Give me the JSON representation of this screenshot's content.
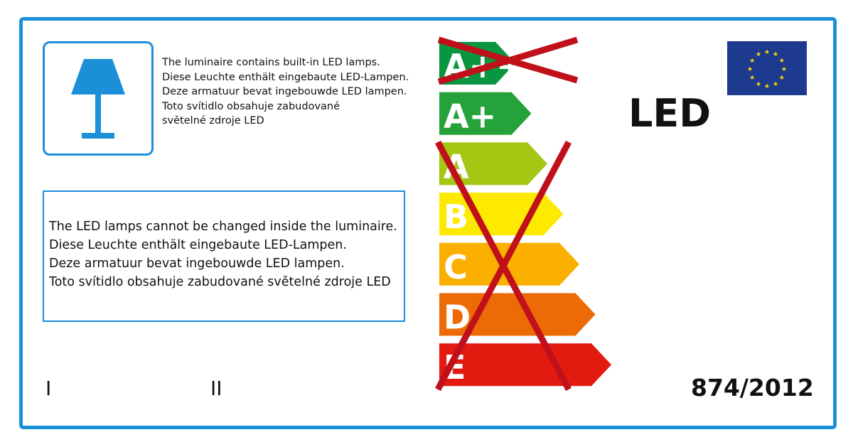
{
  "info_text": [
    "The luminaire contains built-in LED lamps.",
    "Diese Leuchte enthält eingebaute LED-Lampen.",
    "Deze armatuur bevat ingebouwde LED lampen.",
    "Toto svítidlo obsahuje zabudované",
    "světelné zdroje LED"
  ],
  "notice_text": [
    "The LED lamps cannot be changed inside the luminaire.",
    "Diese Leuchte enthält eingebaute LED-Lampen.",
    "Deze armatuur bevat ingebouwde LED lampen.",
    "Toto svítidlo obsahuje zabudované světelné zdroje LED"
  ],
  "led_label": "LED",
  "regulation": "874/2012",
  "roman": [
    "I",
    "II"
  ],
  "icons": {
    "lamp": "table-lamp-icon",
    "flag": "eu-flag-icon"
  },
  "energy_classes": [
    {
      "label": "A++",
      "color": "#0a9640",
      "crossed": true
    },
    {
      "label": "A+",
      "color": "#25a33a",
      "crossed": false
    },
    {
      "label": "A",
      "color": "#a3c713",
      "crossed": true
    },
    {
      "label": "B",
      "color": "#fdea00",
      "crossed": true
    },
    {
      "label": "C",
      "color": "#fbb000",
      "crossed": true
    },
    {
      "label": "D",
      "color": "#ed6b06",
      "crossed": true
    },
    {
      "label": "E",
      "color": "#e21a10",
      "crossed": true
    }
  ],
  "cross_color": "#c0101a",
  "frame_color": "#1b8fd8"
}
